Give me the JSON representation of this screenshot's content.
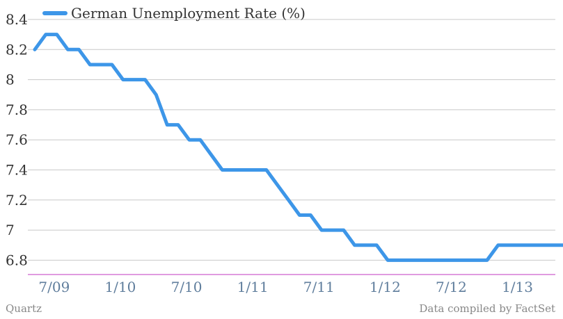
{
  "chart_data": {
    "type": "line",
    "legend": "German Unemployment Rate (%)",
    "legend_position": "top-left",
    "x_tick_labels": [
      "7/09",
      "1/10",
      "7/10",
      "1/11",
      "7/11",
      "1/12",
      "7/12",
      "1/13"
    ],
    "y_tick_labels": [
      "8.4",
      "8.2",
      "8",
      "7.8",
      "7.6",
      "7.4",
      "7.2",
      "7",
      "6.8"
    ],
    "ylim": [
      6.7,
      8.4
    ],
    "grid": true,
    "series": [
      {
        "name": "German Unemployment Rate (%)",
        "color": "#3d96e8",
        "x": [
          "2009-06",
          "2009-07",
          "2009-08",
          "2009-09",
          "2009-10",
          "2009-11",
          "2009-12",
          "2010-01",
          "2010-02",
          "2010-03",
          "2010-04",
          "2010-05",
          "2010-06",
          "2010-07",
          "2010-08",
          "2010-09",
          "2010-10",
          "2010-11",
          "2010-12",
          "2011-01",
          "2011-02",
          "2011-03",
          "2011-04",
          "2011-05",
          "2011-06",
          "2011-07",
          "2011-08",
          "2011-09",
          "2011-10",
          "2011-11",
          "2011-12",
          "2012-01",
          "2012-02",
          "2012-03",
          "2012-04",
          "2012-05",
          "2012-06",
          "2012-07",
          "2012-08",
          "2012-09",
          "2012-10",
          "2012-11",
          "2012-12",
          "2013-01",
          "2013-02",
          "2013-03",
          "2013-04",
          "2013-05",
          "2013-06"
        ],
        "values": [
          8.2,
          8.3,
          8.3,
          8.2,
          8.2,
          8.1,
          8.1,
          8.1,
          8.0,
          8.0,
          8.0,
          7.9,
          7.7,
          7.7,
          7.6,
          7.6,
          7.5,
          7.4,
          7.4,
          7.4,
          7.4,
          7.4,
          7.3,
          7.2,
          7.1,
          7.1,
          7.0,
          7.0,
          7.0,
          6.9,
          6.9,
          6.9,
          6.8,
          6.8,
          6.8,
          6.8,
          6.8,
          6.8,
          6.8,
          6.8,
          6.8,
          6.8,
          6.9,
          6.9,
          6.9,
          6.9,
          6.9,
          6.9,
          6.9
        ]
      }
    ]
  },
  "footer": {
    "source_left": "Quartz",
    "source_right": "Data compiled by FactSet"
  }
}
